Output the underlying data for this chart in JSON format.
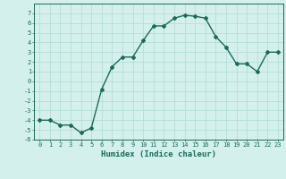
{
  "x": [
    0,
    1,
    2,
    3,
    4,
    5,
    6,
    7,
    8,
    9,
    10,
    11,
    12,
    13,
    14,
    15,
    16,
    17,
    18,
    19,
    20,
    21,
    22,
    23
  ],
  "y": [
    -4,
    -4,
    -4.5,
    -4.5,
    -5.3,
    -4.8,
    -0.8,
    1.5,
    2.5,
    2.5,
    4.2,
    5.7,
    5.7,
    6.5,
    6.8,
    6.7,
    6.5,
    4.6,
    3.5,
    1.8,
    1.8,
    1.0,
    3.0,
    3.0
  ],
  "line_color": "#1a6b5a",
  "marker": "D",
  "markersize": 2.0,
  "linewidth": 1.0,
  "xlabel": "Humidex (Indice chaleur)",
  "xlim": [
    -0.5,
    23.5
  ],
  "ylim": [
    -6,
    8
  ],
  "yticks": [
    -6,
    -5,
    -4,
    -3,
    -2,
    -1,
    0,
    1,
    2,
    3,
    4,
    5,
    6,
    7
  ],
  "xticks": [
    0,
    1,
    2,
    3,
    4,
    5,
    6,
    7,
    8,
    9,
    10,
    11,
    12,
    13,
    14,
    15,
    16,
    17,
    18,
    19,
    20,
    21,
    22,
    23
  ],
  "bg_color": "#d4f0ec",
  "grid_color": "#b8e0da",
  "tick_color": "#1a6b5a",
  "label_color": "#1a6b5a",
  "tick_fontsize": 5.0,
  "xlabel_fontsize": 6.5
}
